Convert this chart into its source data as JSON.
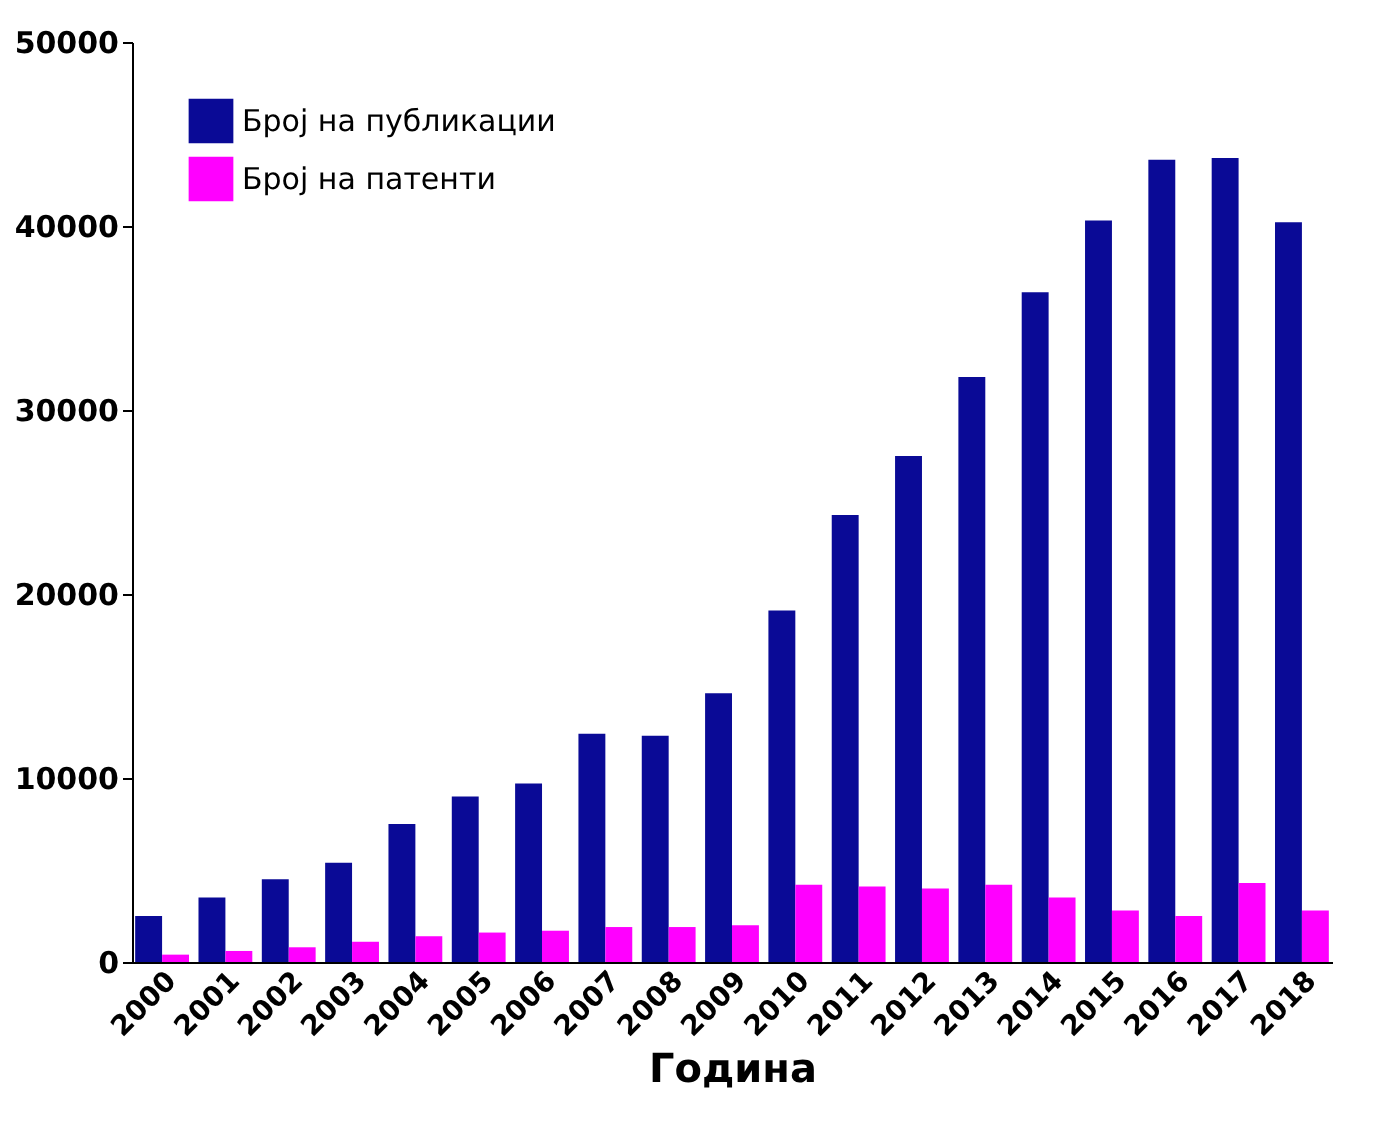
{
  "chart_data": {
    "type": "bar",
    "xlabel": "Година",
    "categories": [
      "2000",
      "2001",
      "2002",
      "2003",
      "2004",
      "2005",
      "2006",
      "2007",
      "2008",
      "2009",
      "2010",
      "2011",
      "2012",
      "2013",
      "2014",
      "2015",
      "2016",
      "2017",
      "2018"
    ],
    "series": [
      {
        "name": "Број на публикации",
        "color": "#0a0a96",
        "values": [
          2500,
          3500,
          4500,
          5400,
          7500,
          9000,
          9700,
          12400,
          12300,
          14600,
          19100,
          24300,
          27500,
          31800,
          36400,
          40300,
          43600,
          43700,
          40200
        ]
      },
      {
        "name": "Број на патенти",
        "color": "#ff00ff",
        "values": [
          400,
          600,
          800,
          1100,
          1400,
          1600,
          1700,
          1900,
          1900,
          2000,
          4200,
          4100,
          4000,
          4200,
          3500,
          2800,
          2500,
          4300,
          2800
        ]
      }
    ],
    "ylim": [
      0,
      50000
    ],
    "yticks": [
      0,
      10000,
      20000,
      30000,
      40000,
      50000
    ],
    "grid": false,
    "legend": "top left"
  }
}
